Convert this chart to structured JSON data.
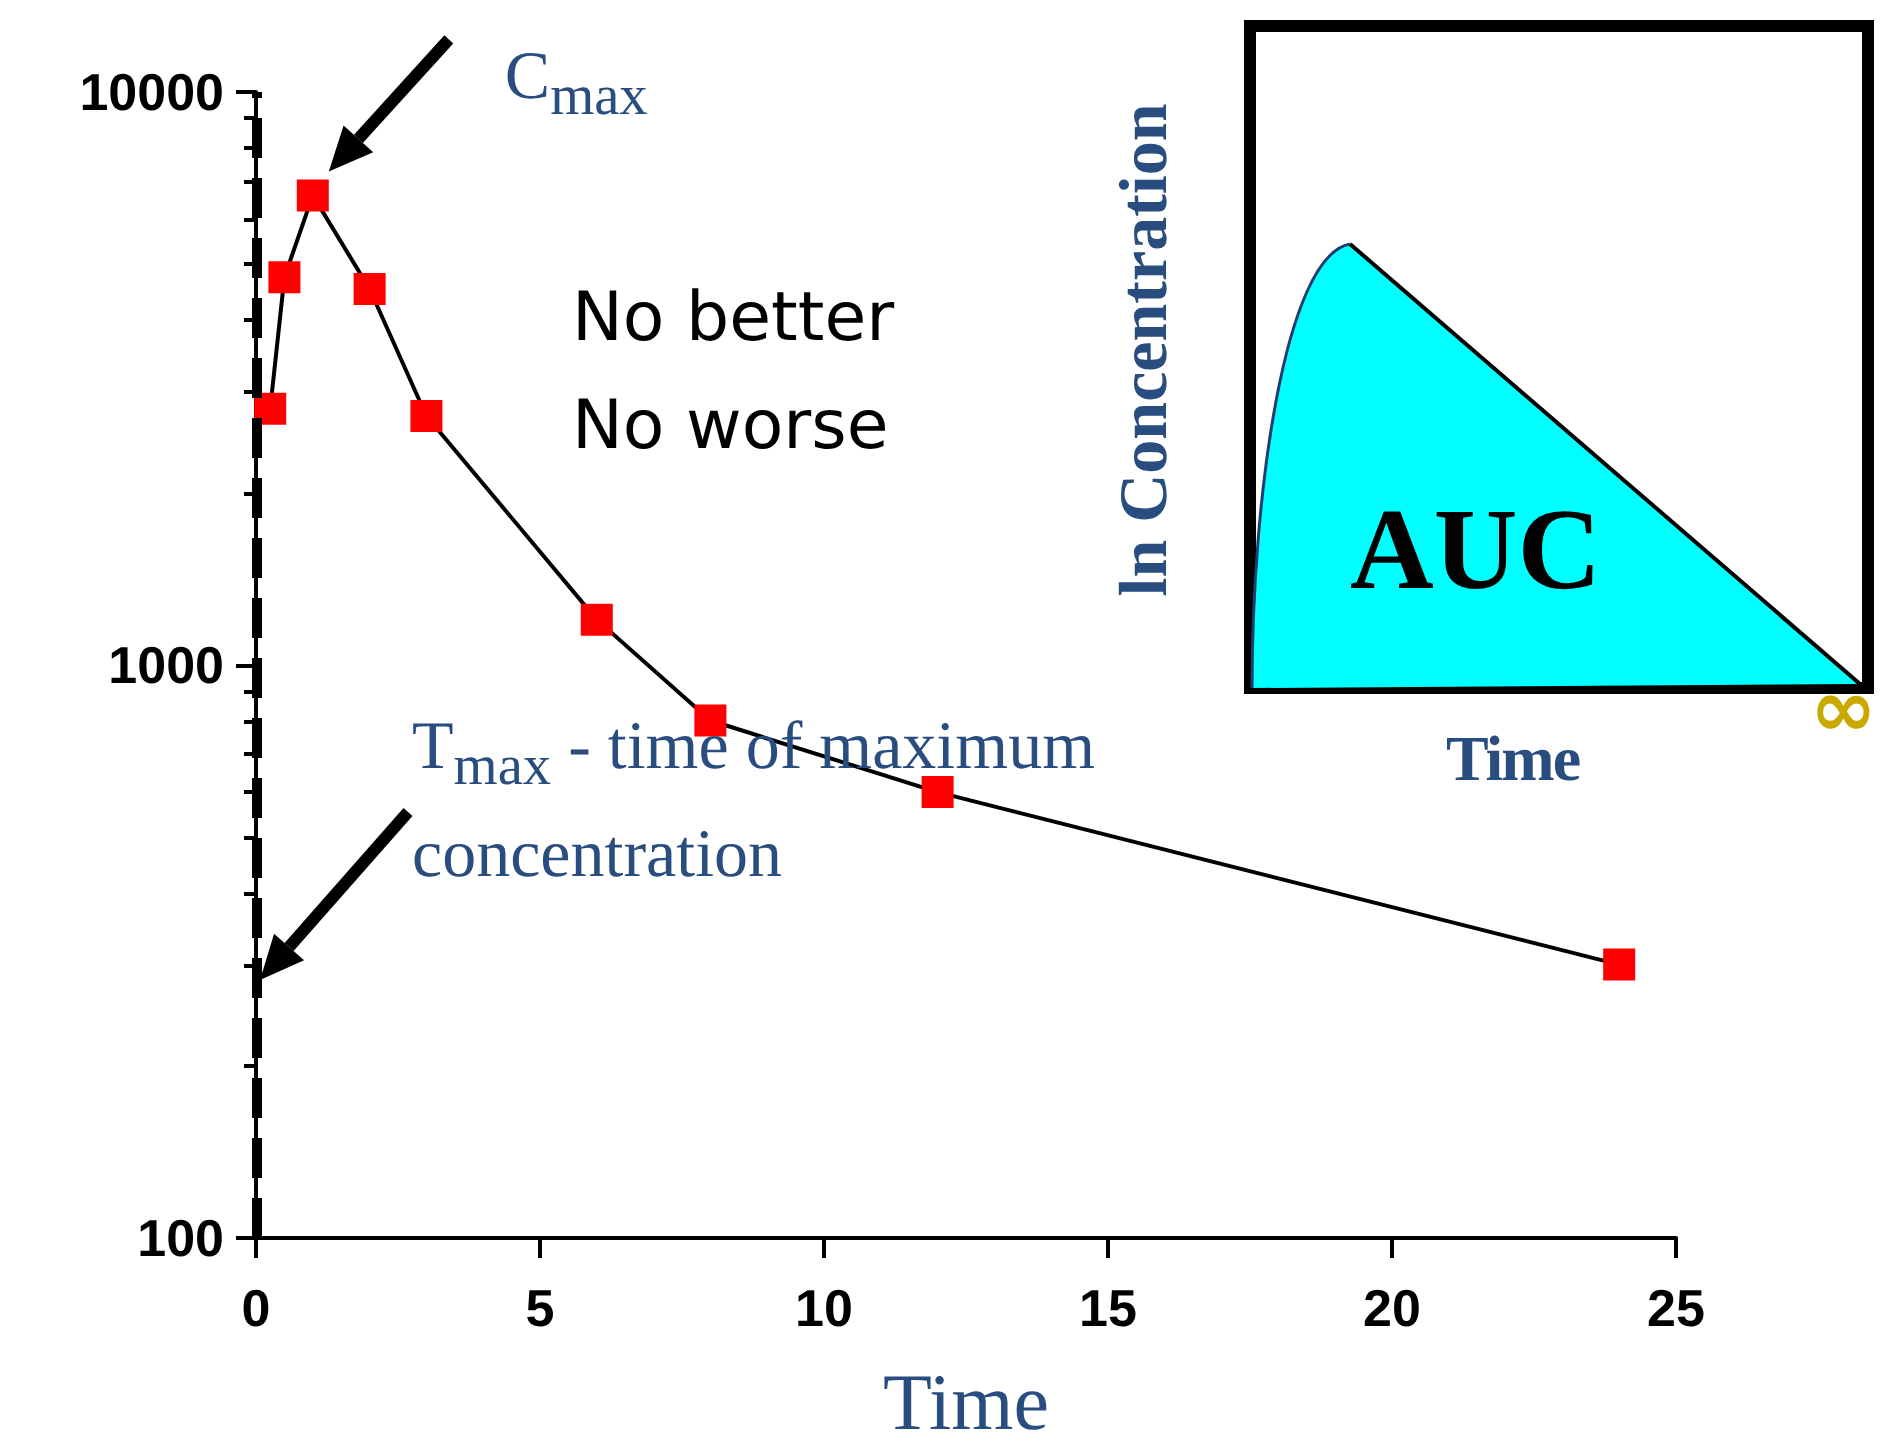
{
  "chart_data": [
    {
      "type": "line",
      "xlabel": "Time",
      "x": [
        0.25,
        0.5,
        1,
        2,
        3,
        6,
        8,
        12,
        24
      ],
      "series": [
        {
          "color": "#ff0000",
          "values": [
            2800,
            4750,
            6600,
            4530,
            2720,
            1200,
            800,
            600,
            300
          ]
        }
      ],
      "log": "y",
      "xlim": [
        0,
        25
      ],
      "xticks": [
        0,
        5,
        10,
        15,
        20,
        25
      ],
      "ylim": [
        100,
        10000
      ],
      "yticks": [
        100,
        1000,
        10000
      ],
      "grid": false,
      "marker": "square",
      "line_style": "solid",
      "ref_lines": [
        {
          "axis": "x",
          "value": 0,
          "line_style": "dashed",
          "color": "#000000"
        }
      ],
      "annotations": [
        {
          "text": "C$_{max}$",
          "x": 1,
          "y": 6600
        },
        "T$_{max}$ - time of maximum concentration",
        "No better\nNo worse"
      ]
    },
    {
      "type": "other",
      "xlabel": "Time",
      "ylabel": "ln Concentration",
      "annotations": [
        "AUC",
        "∞"
      ]
    }
  ]
}
